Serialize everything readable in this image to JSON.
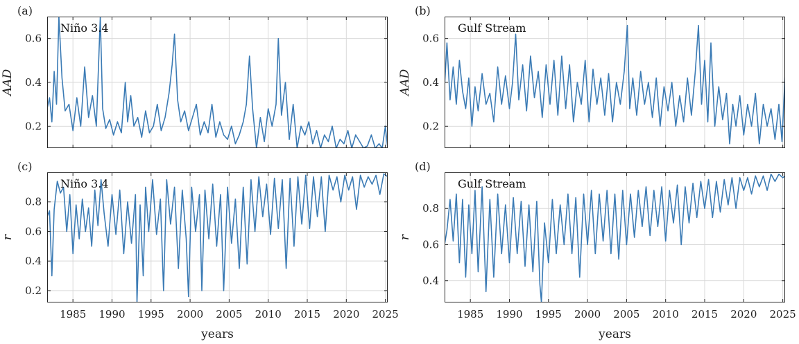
{
  "chart_data": [
    {
      "panel": "(a)",
      "type": "line",
      "annotation": "Niño 3.4",
      "xlabel": "",
      "ylabel": "AAD",
      "xlim": [
        1981.7,
        2025.3
      ],
      "ylim": [
        0.1,
        0.7
      ],
      "xticks": [
        1985,
        1990,
        1995,
        2000,
        2005,
        2010,
        2015,
        2020,
        2025
      ],
      "xtick_labels": [],
      "yticks": [
        0.2,
        0.4,
        0.6
      ],
      "ytick_labels": [
        "0.2",
        "0.4",
        "0.6"
      ],
      "grid": true,
      "color": "#3b7bb5",
      "series": [
        {
          "x": [
            1981.7,
            1982.0,
            1982.3,
            1982.6,
            1982.9,
            1983.2,
            1983.6,
            1984.0,
            1984.5,
            1985.0,
            1985.5,
            1986.0,
            1986.5,
            1987.0,
            1987.5,
            1988.0,
            1988.5,
            1988.8,
            1989.2,
            1989.7,
            1990.2,
            1990.7,
            1991.2,
            1991.7,
            1992.0,
            1992.4,
            1992.8,
            1993.3,
            1993.8,
            1994.3,
            1994.8,
            1995.3,
            1995.8,
            1996.3,
            1996.8,
            1997.3,
            1997.7,
            1998.0,
            1998.4,
            1998.8,
            1999.3,
            1999.8,
            2000.3,
            2000.8,
            2001.3,
            2001.8,
            2002.3,
            2002.8,
            2003.3,
            2003.8,
            2004.3,
            2004.8,
            2005.3,
            2005.8,
            2006.3,
            2006.8,
            2007.2,
            2007.6,
            2008.0,
            2008.5,
            2009.0,
            2009.5,
            2010.0,
            2010.5,
            2011.0,
            2011.3,
            2011.7,
            2012.2,
            2012.7,
            2013.2,
            2013.7,
            2014.2,
            2014.7,
            2015.2,
            2015.7,
            2016.2,
            2016.7,
            2017.2,
            2017.7,
            2018.2,
            2018.7,
            2019.2,
            2019.7,
            2020.2,
            2020.7,
            2021.2,
            2021.7,
            2022.2,
            2022.7,
            2023.2,
            2023.7,
            2024.2,
            2024.6,
            2025.0,
            2025.3
          ],
          "y": [
            0.28,
            0.33,
            0.22,
            0.45,
            0.3,
            0.7,
            0.42,
            0.27,
            0.3,
            0.18,
            0.33,
            0.2,
            0.47,
            0.24,
            0.34,
            0.2,
            0.7,
            0.28,
            0.19,
            0.23,
            0.16,
            0.22,
            0.17,
            0.4,
            0.22,
            0.34,
            0.2,
            0.24,
            0.15,
            0.27,
            0.17,
            0.2,
            0.3,
            0.18,
            0.24,
            0.35,
            0.48,
            0.62,
            0.32,
            0.22,
            0.27,
            0.18,
            0.24,
            0.3,
            0.16,
            0.22,
            0.17,
            0.3,
            0.15,
            0.22,
            0.16,
            0.14,
            0.2,
            0.12,
            0.16,
            0.22,
            0.3,
            0.52,
            0.28,
            0.1,
            0.24,
            0.13,
            0.28,
            0.2,
            0.3,
            0.6,
            0.25,
            0.4,
            0.14,
            0.3,
            0.1,
            0.2,
            0.16,
            0.22,
            0.12,
            0.18,
            0.1,
            0.16,
            0.13,
            0.2,
            0.1,
            0.14,
            0.12,
            0.18,
            0.1,
            0.16,
            0.13,
            0.1,
            0.11,
            0.16,
            0.1,
            0.12,
            0.1,
            0.2,
            0.1
          ]
        }
      ]
    },
    {
      "panel": "(b)",
      "type": "line",
      "annotation": "Gulf Stream",
      "xlabel": "",
      "ylabel": "AAD",
      "xlim": [
        1981.7,
        2025.3
      ],
      "ylim": [
        0.1,
        0.7
      ],
      "xticks": [
        1985,
        1990,
        1995,
        2000,
        2005,
        2010,
        2015,
        2020,
        2025
      ],
      "xtick_labels": [],
      "yticks": [
        0.2,
        0.4,
        0.6
      ],
      "ytick_labels": [
        "0.2",
        "0.4",
        "0.6"
      ],
      "grid": true,
      "color": "#3b7bb5",
      "series": [
        {
          "x": [
            1981.7,
            1982.0,
            1982.4,
            1982.8,
            1983.2,
            1983.6,
            1984.0,
            1984.4,
            1984.8,
            1985.2,
            1985.6,
            1986.0,
            1986.5,
            1987.0,
            1987.5,
            1988.0,
            1988.5,
            1989.0,
            1989.5,
            1990.0,
            1990.4,
            1990.8,
            1991.2,
            1991.7,
            1992.2,
            1992.7,
            1993.2,
            1993.7,
            1994.2,
            1994.7,
            1995.2,
            1995.7,
            1996.2,
            1996.7,
            1997.2,
            1997.7,
            1998.2,
            1998.7,
            1999.2,
            1999.7,
            2000.2,
            2000.7,
            2001.2,
            2001.7,
            2002.2,
            2002.7,
            2003.2,
            2003.7,
            2004.2,
            2004.7,
            2005.1,
            2005.4,
            2005.8,
            2006.3,
            2006.8,
            2007.3,
            2007.8,
            2008.3,
            2008.8,
            2009.3,
            2009.8,
            2010.3,
            2010.8,
            2011.3,
            2011.8,
            2012.3,
            2012.8,
            2013.3,
            2013.8,
            2014.2,
            2014.6,
            2015.0,
            2015.4,
            2015.8,
            2016.3,
            2016.8,
            2017.3,
            2017.8,
            2018.2,
            2018.6,
            2019.0,
            2019.5,
            2020.0,
            2020.5,
            2021.0,
            2021.5,
            2022.0,
            2022.5,
            2023.0,
            2023.5,
            2024.0,
            2024.5,
            2024.9,
            2025.3
          ],
          "y": [
            0.38,
            0.58,
            0.32,
            0.47,
            0.3,
            0.5,
            0.36,
            0.28,
            0.42,
            0.2,
            0.38,
            0.27,
            0.44,
            0.3,
            0.35,
            0.22,
            0.47,
            0.3,
            0.43,
            0.28,
            0.4,
            0.62,
            0.32,
            0.48,
            0.27,
            0.52,
            0.33,
            0.45,
            0.24,
            0.48,
            0.3,
            0.5,
            0.25,
            0.52,
            0.28,
            0.48,
            0.22,
            0.4,
            0.3,
            0.5,
            0.22,
            0.46,
            0.3,
            0.42,
            0.25,
            0.44,
            0.22,
            0.4,
            0.3,
            0.45,
            0.66,
            0.28,
            0.42,
            0.25,
            0.45,
            0.3,
            0.4,
            0.24,
            0.42,
            0.2,
            0.38,
            0.27,
            0.4,
            0.2,
            0.34,
            0.22,
            0.42,
            0.25,
            0.45,
            0.66,
            0.3,
            0.5,
            0.22,
            0.58,
            0.2,
            0.38,
            0.23,
            0.35,
            0.12,
            0.3,
            0.2,
            0.34,
            0.16,
            0.3,
            0.2,
            0.35,
            0.12,
            0.3,
            0.2,
            0.28,
            0.14,
            0.3,
            0.13,
            0.44
          ]
        }
      ]
    },
    {
      "panel": "(c)",
      "type": "line",
      "annotation": "Niño 3.4",
      "xlabel": "years",
      "ylabel": "r",
      "xlim": [
        1981.7,
        2025.3
      ],
      "ylim": [
        0.12,
        1.0
      ],
      "xticks": [
        1985,
        1990,
        1995,
        2000,
        2005,
        2010,
        2015,
        2020,
        2025
      ],
      "xtick_labels": [
        "1985",
        "1990",
        "1995",
        "2000",
        "2005",
        "2010",
        "2015",
        "2020",
        "2025"
      ],
      "yticks": [
        0.2,
        0.4,
        0.6,
        0.8
      ],
      "ytick_labels": [
        "0.2",
        "0.4",
        "0.6",
        "0.8"
      ],
      "grid": true,
      "color": "#3b7bb5",
      "series": [
        {
          "x": [
            1981.7,
            1982.0,
            1982.3,
            1982.6,
            1983.0,
            1983.4,
            1983.8,
            1984.2,
            1984.6,
            1985.0,
            1985.4,
            1985.8,
            1986.2,
            1986.6,
            1987.0,
            1987.4,
            1987.8,
            1988.2,
            1988.6,
            1989.0,
            1989.5,
            1990.0,
            1990.5,
            1991.0,
            1991.5,
            1992.0,
            1992.5,
            1993.0,
            1993.2,
            1993.6,
            1994.0,
            1994.3,
            1994.7,
            1995.2,
            1995.7,
            1996.2,
            1996.6,
            1997.0,
            1997.5,
            1998.0,
            1998.5,
            1999.0,
            1999.5,
            1999.8,
            2000.2,
            2000.7,
            2001.2,
            2001.5,
            2001.9,
            2002.4,
            2002.9,
            2003.4,
            2003.9,
            2004.3,
            2004.8,
            2005.3,
            2005.8,
            2006.3,
            2006.8,
            2007.3,
            2007.8,
            2008.3,
            2008.8,
            2009.3,
            2009.8,
            2010.3,
            2010.8,
            2011.3,
            2011.8,
            2012.3,
            2012.8,
            2013.3,
            2013.8,
            2014.3,
            2014.8,
            2015.3,
            2015.8,
            2016.3,
            2016.8,
            2017.3,
            2017.8,
            2018.3,
            2018.8,
            2019.3,
            2019.8,
            2020.3,
            2020.8,
            2021.3,
            2021.8,
            2022.3,
            2022.8,
            2023.3,
            2023.8,
            2024.3,
            2024.8,
            2025.3
          ],
          "y": [
            0.7,
            0.74,
            0.3,
            0.75,
            0.94,
            0.86,
            0.9,
            0.6,
            0.85,
            0.45,
            0.78,
            0.55,
            0.82,
            0.6,
            0.76,
            0.5,
            0.88,
            0.64,
            0.95,
            0.72,
            0.5,
            0.85,
            0.58,
            0.88,
            0.45,
            0.8,
            0.52,
            0.85,
            0.12,
            0.78,
            0.3,
            0.9,
            0.6,
            0.95,
            0.58,
            0.82,
            0.2,
            0.95,
            0.65,
            0.9,
            0.35,
            0.88,
            0.55,
            0.16,
            0.9,
            0.6,
            0.85,
            0.2,
            0.88,
            0.55,
            0.92,
            0.5,
            0.85,
            0.2,
            0.9,
            0.52,
            0.82,
            0.35,
            0.9,
            0.38,
            0.95,
            0.6,
            0.97,
            0.7,
            0.92,
            0.58,
            0.96,
            0.62,
            0.95,
            0.35,
            0.96,
            0.5,
            0.97,
            0.65,
            0.98,
            0.62,
            0.97,
            0.7,
            0.97,
            0.6,
            0.98,
            0.88,
            0.97,
            0.8,
            0.98,
            0.88,
            0.97,
            0.75,
            0.98,
            0.9,
            0.97,
            0.92,
            0.98,
            0.85,
            0.99,
            0.97
          ]
        }
      ]
    },
    {
      "panel": "(d)",
      "type": "line",
      "annotation": "Gulf Stream",
      "xlabel": "years",
      "ylabel": "r",
      "xlim": [
        1981.7,
        2025.3
      ],
      "ylim": [
        0.28,
        1.0
      ],
      "xticks": [
        1985,
        1990,
        1995,
        2000,
        2005,
        2010,
        2015,
        2020,
        2025
      ],
      "xtick_labels": [
        "1985",
        "1990",
        "1995",
        "2000",
        "2005",
        "2010",
        "2015",
        "2020",
        "2025"
      ],
      "yticks": [
        0.4,
        0.6,
        0.8
      ],
      "ytick_labels": [
        "0.4",
        "0.6",
        "0.8"
      ],
      "grid": true,
      "color": "#3b7bb5",
      "series": [
        {
          "x": [
            1981.7,
            1982.0,
            1982.4,
            1982.8,
            1983.2,
            1983.6,
            1984.0,
            1984.4,
            1984.8,
            1985.2,
            1985.6,
            1986.0,
            1986.5,
            1987.0,
            1987.5,
            1988.0,
            1988.5,
            1989.0,
            1989.5,
            1990.0,
            1990.5,
            1991.0,
            1991.5,
            1992.0,
            1992.5,
            1993.0,
            1993.5,
            1993.9,
            1994.1,
            1994.5,
            1995.0,
            1995.5,
            1996.0,
            1996.5,
            1997.0,
            1997.5,
            1998.0,
            1998.5,
            1999.0,
            1999.5,
            2000.0,
            2000.5,
            2001.0,
            2001.5,
            2002.0,
            2002.5,
            2003.0,
            2003.5,
            2004.0,
            2004.5,
            2005.0,
            2005.5,
            2006.0,
            2006.5,
            2007.0,
            2007.5,
            2008.0,
            2008.5,
            2009.0,
            2009.5,
            2010.0,
            2010.5,
            2011.0,
            2011.5,
            2012.0,
            2012.5,
            2013.0,
            2013.5,
            2014.0,
            2014.5,
            2015.0,
            2015.5,
            2016.0,
            2016.5,
            2017.0,
            2017.5,
            2018.0,
            2018.5,
            2019.0,
            2019.5,
            2020.0,
            2020.5,
            2021.0,
            2021.5,
            2022.0,
            2022.5,
            2023.0,
            2023.5,
            2024.0,
            2024.5,
            2025.0,
            2025.3
          ],
          "y": [
            0.6,
            0.68,
            0.85,
            0.62,
            0.88,
            0.5,
            0.85,
            0.42,
            0.82,
            0.55,
            0.9,
            0.45,
            0.92,
            0.34,
            0.85,
            0.42,
            0.88,
            0.55,
            0.82,
            0.5,
            0.86,
            0.55,
            0.84,
            0.48,
            0.82,
            0.45,
            0.84,
            0.38,
            0.28,
            0.72,
            0.5,
            0.85,
            0.55,
            0.82,
            0.6,
            0.88,
            0.55,
            0.86,
            0.42,
            0.88,
            0.6,
            0.9,
            0.55,
            0.88,
            0.62,
            0.9,
            0.55,
            0.88,
            0.52,
            0.9,
            0.6,
            0.88,
            0.64,
            0.9,
            0.7,
            0.92,
            0.65,
            0.9,
            0.7,
            0.92,
            0.62,
            0.9,
            0.72,
            0.93,
            0.6,
            0.92,
            0.72,
            0.94,
            0.75,
            0.95,
            0.8,
            0.96,
            0.75,
            0.95,
            0.78,
            0.96,
            0.82,
            0.97,
            0.8,
            0.97,
            0.9,
            0.97,
            0.88,
            0.98,
            0.92,
            0.98,
            0.9,
            0.99,
            0.95,
            0.99,
            0.97,
            0.98
          ]
        }
      ]
    }
  ]
}
